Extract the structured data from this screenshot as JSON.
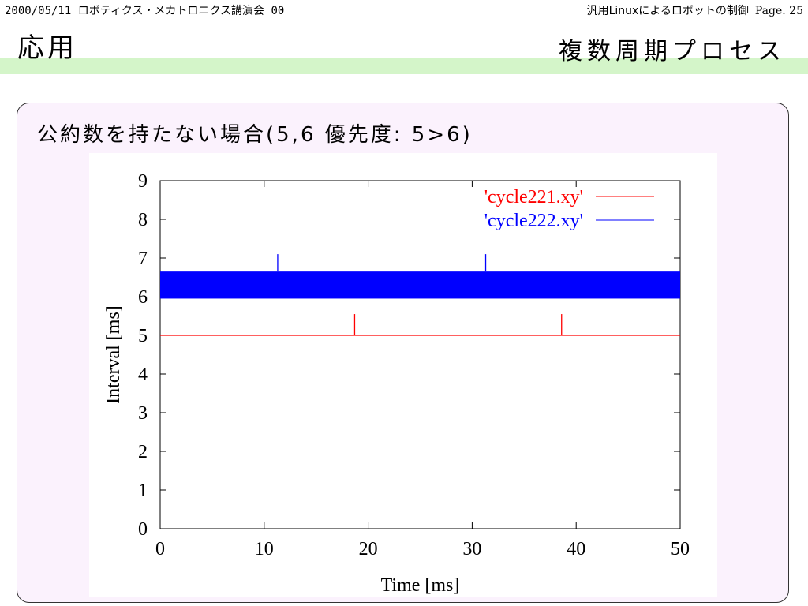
{
  "header": {
    "left_text": "2000/05/11 ロボティクス・メカトロニクス講演会 00",
    "right_text": "汎用Linuxによるロボットの制御",
    "page_label": "Page. 25"
  },
  "section_title": "応用",
  "slide_title": "複数周期プロセス",
  "subtitle": "公約数を持たない場合(5,6 優先度: 5>6)",
  "colors": {
    "title_band": "#d4f5c9",
    "content_bg": "#fbf2fd",
    "series_red": "#ff0000",
    "series_blue": "#0000ff"
  },
  "chart_data": {
    "type": "line",
    "xlabel": "Time [ms]",
    "ylabel": "Interval [ms]",
    "xlim": [
      0,
      50
    ],
    "ylim": [
      0,
      9
    ],
    "xticks": [
      0,
      10,
      20,
      30,
      40,
      50
    ],
    "yticks": [
      0,
      1,
      2,
      3,
      4,
      5,
      6,
      7,
      8,
      9
    ],
    "legend_position": "top-right",
    "series": [
      {
        "name": "'cycle221.xy'",
        "color": "#ff0000",
        "baseline": 5.0,
        "band": [
          5.0,
          5.0
        ],
        "spikes": [
          {
            "x": 18.7,
            "y": 5.55
          },
          {
            "x": 38.6,
            "y": 5.55
          }
        ]
      },
      {
        "name": "'cycle222.xy'",
        "color": "#0000ff",
        "baseline": 6.3,
        "band": [
          5.95,
          6.65
        ],
        "spikes": [
          {
            "x": 11.3,
            "y": 7.1
          },
          {
            "x": 31.3,
            "y": 7.1
          }
        ]
      }
    ]
  }
}
